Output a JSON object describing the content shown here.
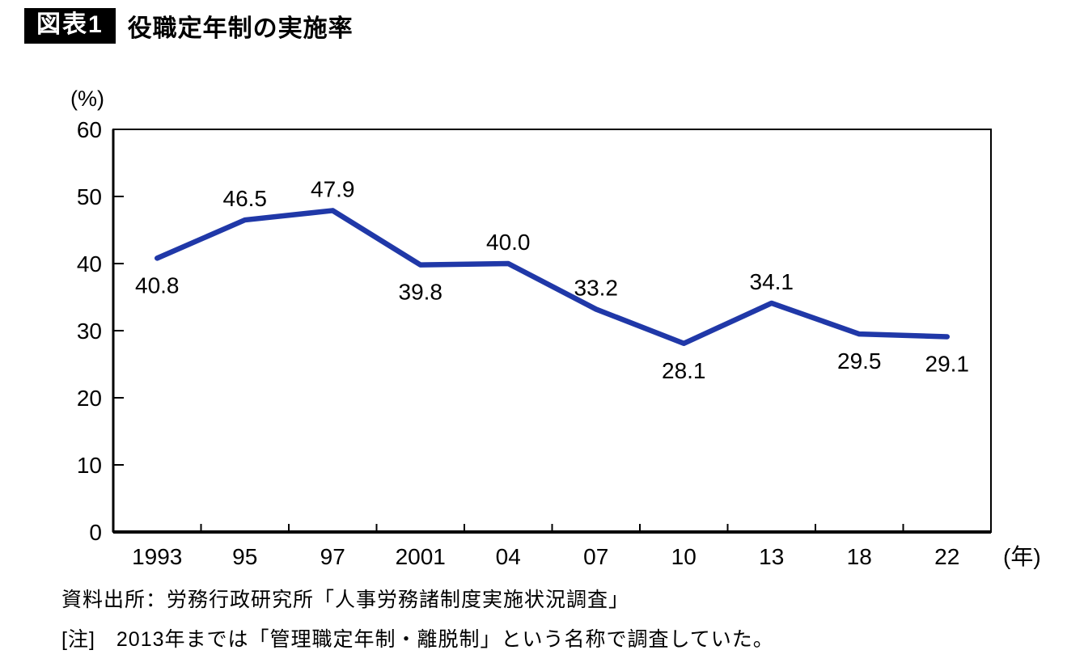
{
  "header": {
    "figure_label": "図表1",
    "title": "役職定年制の実施率"
  },
  "chart_data": {
    "type": "line",
    "title": "役職定年制の実施率",
    "categories": [
      "1993",
      "95",
      "97",
      "2001",
      "04",
      "07",
      "10",
      "13",
      "18",
      "22"
    ],
    "values": [
      40.8,
      46.5,
      47.9,
      39.8,
      40.0,
      33.2,
      28.1,
      34.1,
      29.5,
      29.1
    ],
    "value_labels": [
      "40.8",
      "46.5",
      "47.9",
      "39.8",
      "40.0",
      "33.2",
      "28.1",
      "34.1",
      "29.5",
      "29.1"
    ],
    "label_positions": [
      "below",
      "above",
      "above",
      "below",
      "above",
      "above",
      "below",
      "above",
      "below",
      "below"
    ],
    "ylabel": "(%)",
    "x_unit_label": "(年)",
    "xlabel": "",
    "ylim": [
      0,
      60
    ],
    "yticks": [
      0,
      10,
      20,
      30,
      40,
      50,
      60
    ],
    "grid": false,
    "legend": "none",
    "line_color": "#2038a8",
    "axis_color": "#000000"
  },
  "footer": {
    "source": "資料出所：労務行政研究所「人事労務諸制度実施状況調査」",
    "note": "[注]　2013年までは「管理職定年制・離脱制」という名称で調査していた。"
  }
}
